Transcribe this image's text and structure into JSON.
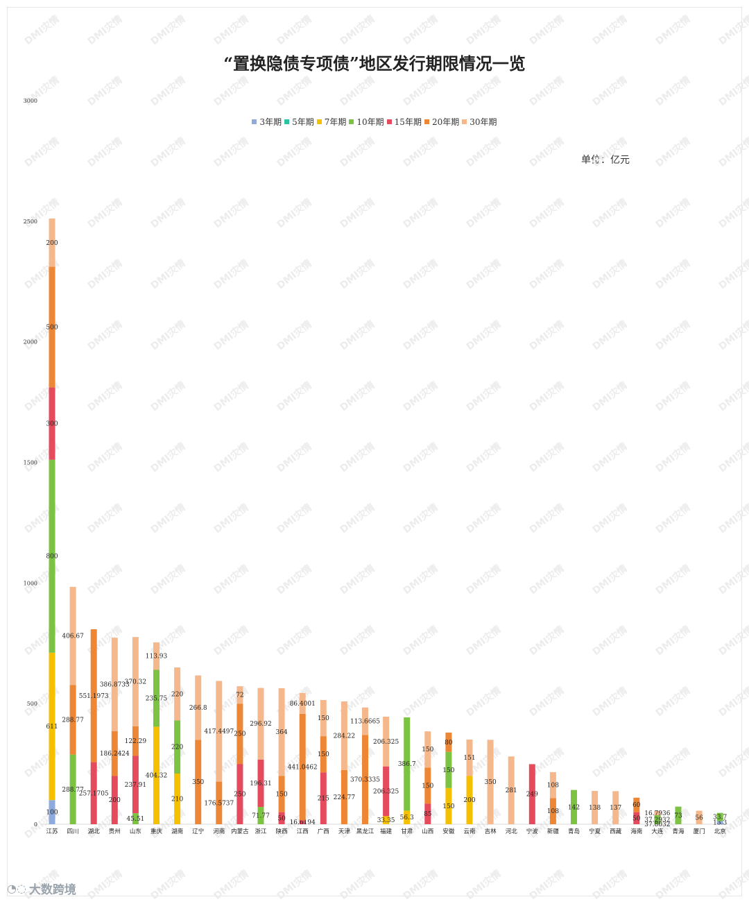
{
  "header": {
    "title": "“置换隐债专项债”地区发行期限情况一览",
    "unit": "单位：亿元"
  },
  "watermark": "DMI灾情",
  "brand": {
    "text": "大数跨境",
    "icon": "brand-logo-icon"
  },
  "colors": {
    "3年期": "#8faadc",
    "5年期": "#2cc2a2",
    "7年期": "#f5c000",
    "10年期": "#7cc243",
    "15年期": "#e54b5c",
    "20年期": "#ed8735",
    "30年期": "#f5b88c"
  },
  "chart_data": {
    "type": "bar",
    "stacked": true,
    "title": "“置换隐债专项债”地区发行期限情况一览",
    "xlabel": "",
    "ylabel": "",
    "ylim": [
      0,
      3000
    ],
    "yticks": [
      0,
      500,
      1000,
      1500,
      2000,
      2500,
      3000
    ],
    "legend": "top",
    "categories": [
      "江苏",
      "四川",
      "湖北",
      "贵州",
      "山东",
      "重庆",
      "湖南",
      "辽宁",
      "河南",
      "内蒙古",
      "浙江",
      "陕西",
      "江西",
      "广西",
      "天津",
      "黑龙江",
      "福建",
      "甘肃",
      "山西",
      "安徽",
      "云南",
      "吉林",
      "河北",
      "宁波",
      "新疆",
      "青岛",
      "宁夏",
      "西藏",
      "海南",
      "大连",
      "青海",
      "厦门",
      "北京"
    ],
    "series": [
      {
        "name": "3年期",
        "values": [
          100,
          0,
          0,
          0,
          0,
          0,
          0,
          0,
          0,
          0,
          0,
          0,
          0,
          0,
          0,
          0,
          0,
          0,
          0,
          0,
          0,
          0,
          0,
          0,
          0,
          0,
          0,
          0,
          0,
          0,
          0,
          0,
          13.3
        ]
      },
      {
        "name": "5年期",
        "values": [
          0,
          0,
          0,
          0,
          0,
          0,
          0,
          0,
          0,
          0,
          0,
          0,
          0,
          0,
          0,
          0,
          0,
          0,
          0,
          0,
          0,
          0,
          0,
          0,
          0,
          0,
          0,
          0,
          0,
          0,
          0,
          0,
          0
        ]
      },
      {
        "name": "7年期",
        "values": [
          611,
          0,
          0,
          0,
          0,
          404.32,
          210,
          0,
          0,
          0,
          0,
          0,
          0,
          0,
          0,
          0,
          33.35,
          56.3,
          0,
          150,
          200,
          0,
          0,
          0,
          0,
          0,
          0,
          0,
          0,
          0,
          0,
          0,
          0
        ]
      },
      {
        "name": "10年期",
        "values": [
          800,
          288.77,
          0,
          0,
          45.51,
          235.75,
          220,
          0,
          0,
          0,
          71.77,
          0,
          0,
          0,
          0,
          0,
          0,
          386.7,
          0,
          150,
          0,
          0,
          0,
          0,
          0,
          142,
          0,
          0,
          0,
          37.2932,
          73,
          0,
          33.7
        ]
      },
      {
        "name": "15年期",
        "values": [
          300,
          0,
          257.1705,
          200,
          237.91,
          0,
          0,
          0,
          0,
          250,
          196.31,
          50,
          16.6194,
          215,
          0,
          0,
          206.325,
          0,
          85,
          0,
          0,
          0,
          0,
          249,
          0,
          0,
          0,
          0,
          50,
          0,
          0,
          0,
          0
        ]
      },
      {
        "name": "20年期",
        "values": [
          500,
          288.77,
          551.1973,
          186.2424,
          122.29,
          0,
          0,
          350,
          176.5737,
          250,
          0,
          150,
          441.0462,
          150,
          224.77,
          370.3335,
          0,
          0,
          150,
          80,
          0,
          0,
          0,
          0,
          108,
          0,
          0,
          0,
          60,
          0,
          0,
          0,
          0
        ]
      },
      {
        "name": "30年期",
        "values": [
          200,
          406.67,
          0,
          386.8733,
          370.32,
          113.93,
          220,
          266.8,
          417.4497,
          72,
          296.92,
          364,
          86.4001,
          150,
          284.22,
          113.6665,
          206.325,
          0,
          150,
          0,
          151,
          350,
          281,
          0,
          108,
          0,
          138,
          137,
          0,
          16.7936,
          0,
          56,
          0
        ]
      }
    ],
    "data_labels": [
      [
        "100",
        "",
        "611",
        "800",
        "300",
        "500",
        "200"
      ],
      [
        "",
        "",
        "",
        "288.77",
        "",
        "288.77",
        "406.67"
      ],
      [
        "",
        "",
        "",
        "",
        "257.1705",
        "551.1973",
        ""
      ],
      [
        "",
        "",
        "",
        "",
        "200",
        "186.2424",
        "386.8733"
      ],
      [
        "",
        "",
        "",
        "45.51",
        "237.91",
        "122.29",
        "370.32"
      ],
      [
        "",
        "",
        "404.32",
        "235.75",
        "",
        "",
        "113.93"
      ],
      [
        "",
        "",
        "210",
        "220",
        "",
        "",
        "220"
      ],
      [
        "",
        "",
        "",
        "",
        "",
        "350",
        "266.8"
      ],
      [
        "",
        "",
        "",
        "",
        "",
        "176.5737",
        "417.4497"
      ],
      [
        "",
        "",
        "",
        "",
        "250",
        "250",
        "72"
      ],
      [
        "",
        "",
        "",
        "71.77",
        "196.31",
        "",
        "296.92"
      ],
      [
        "",
        "",
        "",
        "",
        "50",
        "150",
        "364"
      ],
      [
        "",
        "",
        "",
        "",
        "16.6194",
        "441.0462",
        "86.4001"
      ],
      [
        "",
        "",
        "",
        "",
        "215",
        "150",
        "150"
      ],
      [
        "",
        "",
        "",
        "",
        "",
        "224.77",
        "284.22"
      ],
      [
        "",
        "",
        "",
        "",
        "",
        "370.3335",
        "113.6665"
      ],
      [
        "",
        "",
        "33.35",
        "",
        "206.325",
        "",
        "206.325"
      ],
      [
        "",
        "",
        "56.3",
        "386.7",
        "",
        "",
        ""
      ],
      [
        "",
        "",
        "",
        "",
        "85",
        "150",
        "150"
      ],
      [
        "",
        "",
        "150",
        "150",
        "",
        "80",
        ""
      ],
      [
        "",
        "",
        "200",
        "",
        "",
        "",
        "151"
      ],
      [
        "",
        "",
        "",
        "",
        "",
        "",
        "350"
      ],
      [
        "",
        "",
        "",
        "",
        "",
        "",
        "281"
      ],
      [
        "",
        "",
        "",
        "",
        "249",
        "",
        ""
      ],
      [
        "",
        "",
        "",
        "",
        "",
        "108",
        "108"
      ],
      [
        "",
        "",
        "",
        "142",
        "",
        "",
        ""
      ],
      [
        "",
        "",
        "",
        "",
        "",
        "",
        "138"
      ],
      [
        "",
        "",
        "",
        "",
        "",
        "",
        "137"
      ],
      [
        "",
        "",
        "",
        "",
        "50",
        "60",
        ""
      ],
      [
        "",
        "",
        "",
        "37.2932",
        "",
        "",
        "16.7936"
      ],
      [
        "",
        "",
        "",
        "73",
        "",
        "",
        ""
      ],
      [
        "",
        "",
        "",
        "",
        "",
        "",
        "56"
      ],
      [
        "13.3",
        "",
        "",
        "33.7",
        "",
        "",
        ""
      ]
    ],
    "extra_labels": [
      {
        "category": "大连",
        "text": "37.8032"
      }
    ]
  }
}
